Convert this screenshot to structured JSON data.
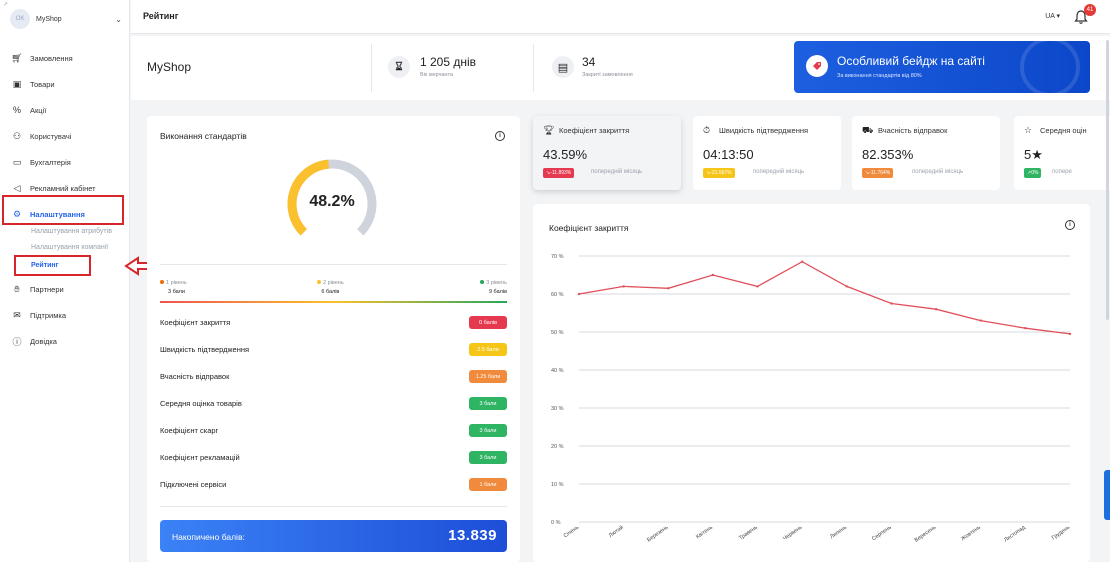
{
  "sidebar": {
    "shop_name": "MyShop",
    "shop_initials": "OK",
    "items": [
      {
        "label": "Замовлення",
        "icon": "cart-icon"
      },
      {
        "label": "Товари",
        "icon": "box-icon"
      },
      {
        "label": "Акції",
        "icon": "promo-icon"
      },
      {
        "label": "Користувачі",
        "icon": "users-icon"
      },
      {
        "label": "Бухгалтерія",
        "icon": "wallet-icon"
      },
      {
        "label": "Рекламний кабінет",
        "icon": "ads-icon"
      },
      {
        "label": "Налаштування",
        "icon": "gear-icon",
        "active": true
      },
      {
        "label": "Партнери",
        "icon": "handshake-icon"
      },
      {
        "label": "Підтримка",
        "icon": "support-icon"
      },
      {
        "label": "Довідка",
        "icon": "help-icon"
      }
    ],
    "sub_items": [
      "Налаштування атрибутів",
      "Налаштування компанії",
      "Рейтинг"
    ]
  },
  "topbar": {
    "title": "Рейтинг",
    "lang": "UA",
    "notifications": "41"
  },
  "stats": {
    "shop": "MyShop",
    "days_value": "1 205 днів",
    "days_label": "Вік мерчанта",
    "orders_value": "34",
    "orders_label": "Закриті замовлення",
    "badge_title": "Особливий бейдж на сайті",
    "badge_sub": "За виконання стандартів від 80%"
  },
  "standards": {
    "title": "Виконання стандартів",
    "percent_label": "48.2%",
    "percent": 48.2,
    "levels": [
      {
        "name": "1 рівень",
        "points": "3 бали",
        "color": "#ef6c00"
      },
      {
        "name": "2 рівень",
        "points": "6 балів",
        "color": "#fbc02d"
      },
      {
        "name": "3 рівень",
        "points": "9 балів",
        "color": "#26a65b"
      }
    ],
    "metrics": [
      {
        "name": "Коефіцієнт закриття",
        "pill": "0 балів",
        "color": "#e53950"
      },
      {
        "name": "Швидкість підтвердження",
        "pill": "2.5 бали",
        "color": "#f5c518"
      },
      {
        "name": "Вчасність відправок",
        "pill": "1.25 бали",
        "color": "#f08a3c"
      },
      {
        "name": "Середня оцінка товарів",
        "pill": "3 бали",
        "color": "#2fb463"
      },
      {
        "name": "Коефіцієнт скарг",
        "pill": "3 бали",
        "color": "#2fb463"
      },
      {
        "name": "Коефіцієнт рекламацій",
        "pill": "3 бали",
        "color": "#2fb463"
      },
      {
        "name": "Підключені сервіси",
        "pill": "1 бали",
        "color": "#f08a3c"
      }
    ],
    "total_label": "Накопичено балів:",
    "total_value": "13.839"
  },
  "kpis": [
    {
      "name": "Коефіцієнт закриття",
      "icon": "trophy-icon",
      "value": "43.59%",
      "chip": "-11.893%",
      "chip_color": "#e53950",
      "prev": "попередній місяць"
    },
    {
      "name": "Швидкість підтвердження",
      "icon": "stopwatch-icon",
      "value": "04:13:50",
      "chip": "-21.567%",
      "chip_color": "#f5c518",
      "prev": "попередній місяць"
    },
    {
      "name": "Вчасність відправок",
      "icon": "truck-icon",
      "value": "82.353%",
      "chip": "-11.764%",
      "chip_color": "#f08a3c",
      "prev": "попередній місяць"
    },
    {
      "name": "Середня оцін",
      "icon": "star-icon",
      "value": "5★",
      "chip": "0%",
      "chip_color": "#2fb463",
      "prev": "попере"
    }
  ],
  "chart_data": {
    "type": "line",
    "title": "Коефіцієнт закриття",
    "categories": [
      "Січень",
      "Лютий",
      "Березень",
      "Квітень",
      "Травень",
      "Червень",
      "Липень",
      "Серпень",
      "Вересень",
      "Жовтень",
      "Листопад",
      "Грудень"
    ],
    "series": [
      {
        "values": [
          60,
          62,
          61.5,
          65,
          62,
          68.5,
          62,
          57.5,
          56,
          53,
          51,
          49.5
        ]
      }
    ],
    "y_ticks": [
      "0 %",
      "10 %",
      "20 %",
      "30 %",
      "40 %",
      "50 %",
      "60 %",
      "70 %"
    ],
    "ylim": [
      0,
      70
    ],
    "grid": true,
    "line_color": "#e0505a"
  }
}
